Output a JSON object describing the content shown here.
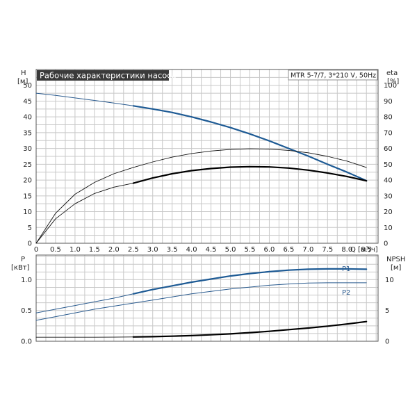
{
  "chart_data": [
    {
      "type": "line",
      "title": "Рабочие характеристики насоса",
      "model": "MTR 5-7/7, 3*210 V, 50Hz",
      "ylabel": "H",
      "yunit": "[м]",
      "y2label": "eta",
      "y2unit": "[%]",
      "xlabel": "Q [м³/ч]",
      "xlim": [
        0,
        8.8
      ],
      "ylim": [
        0,
        55
      ],
      "y2lim": [
        0,
        110
      ],
      "grid": true,
      "xticks": [
        "0",
        "0.5",
        "1.0",
        "1.5",
        "2.0",
        "2.5",
        "3.0",
        "3.5",
        "4.0",
        "4.5",
        "5.0",
        "5.5",
        "6.0",
        "6.5",
        "7.0",
        "7.5",
        "8.0",
        "8.5"
      ],
      "yticks": [
        "0",
        "5",
        "10",
        "15",
        "20",
        "25",
        "30",
        "35",
        "40",
        "45",
        "50"
      ],
      "y2ticks": [
        "0",
        "10",
        "20",
        "30",
        "40",
        "50",
        "60",
        "70",
        "80",
        "90",
        "100"
      ],
      "series": [
        {
          "id": "head-thin",
          "axis": "left",
          "color": "#2a5b8f",
          "width": 1,
          "x": [
            0,
            0.5,
            1.0,
            1.5,
            2.0,
            2.5
          ],
          "y": [
            47.5,
            46.8,
            46.0,
            45.2,
            44.4,
            43.5
          ]
        },
        {
          "id": "head-thick",
          "axis": "left",
          "color": "#1d5a94",
          "width": 2.2,
          "x": [
            2.5,
            3.0,
            3.5,
            4.0,
            4.5,
            5.0,
            5.5,
            6.0,
            6.5,
            7.0,
            7.5,
            8.0,
            8.5
          ],
          "y": [
            43.5,
            42.5,
            41.4,
            40.0,
            38.4,
            36.6,
            34.6,
            32.4,
            30.0,
            27.6,
            25.0,
            22.5,
            19.8
          ]
        },
        {
          "id": "eta-thin-upper",
          "axis": "right",
          "color": "#111111",
          "width": 0.9,
          "x": [
            0,
            0.5,
            1.0,
            1.5,
            2.0,
            2.5,
            3.0,
            3.5,
            4.0,
            4.5,
            5.0,
            5.5,
            6.0,
            6.5,
            7.0,
            7.5,
            8.0,
            8.5
          ],
          "y": [
            0,
            19,
            31,
            38.5,
            44,
            48,
            51.5,
            54.5,
            56.8,
            58.4,
            59.4,
            59.8,
            59.6,
            58.8,
            57.3,
            55.0,
            52.0,
            48.0
          ]
        },
        {
          "id": "eta-thin-lower",
          "axis": "right",
          "color": "#111111",
          "width": 0.9,
          "x": [
            0,
            0.5,
            1.0,
            1.5,
            2.0,
            2.5
          ],
          "y": [
            0,
            15.5,
            25,
            31.5,
            35.5,
            38
          ]
        },
        {
          "id": "eta-thick",
          "axis": "right",
          "color": "#000000",
          "width": 2.2,
          "x": [
            2.5,
            3.0,
            3.5,
            4.0,
            4.5,
            5.0,
            5.5,
            6.0,
            6.5,
            7.0,
            7.5,
            8.0,
            8.5
          ],
          "y": [
            38,
            41.3,
            44,
            46,
            47.3,
            48.2,
            48.5,
            48.3,
            47.6,
            46.3,
            44.5,
            42.3,
            39.5
          ]
        }
      ]
    },
    {
      "type": "line",
      "ylabel": "P",
      "yunit": "[кВт]",
      "y2label": "NPSH",
      "y2unit": "[м]",
      "xlim": [
        0,
        8.8
      ],
      "ylim": [
        0,
        1.4
      ],
      "y2lim": [
        0,
        14
      ],
      "grid": true,
      "yticks": [
        "0.0",
        "0.5",
        "1.0"
      ],
      "y2ticks": [
        "0",
        "5",
        "10"
      ],
      "series": [
        {
          "id": "p1-thin",
          "name": "P1",
          "axis": "left",
          "color": "#2a5b8f",
          "width": 1,
          "x": [
            0,
            0.5,
            1.0,
            1.5,
            2.0,
            2.5
          ],
          "y": [
            0.46,
            0.52,
            0.58,
            0.64,
            0.7,
            0.77
          ]
        },
        {
          "id": "p1-thick",
          "name": "P1",
          "axis": "left",
          "color": "#1d5a94",
          "width": 2.2,
          "x": [
            2.5,
            3.0,
            3.5,
            4.0,
            4.5,
            5.0,
            5.5,
            6.0,
            6.5,
            7.0,
            7.5,
            8.0,
            8.5
          ],
          "y": [
            0.77,
            0.84,
            0.9,
            0.96,
            1.01,
            1.06,
            1.1,
            1.13,
            1.155,
            1.17,
            1.175,
            1.175,
            1.17
          ]
        },
        {
          "id": "p2",
          "name": "P2",
          "axis": "left",
          "color": "#2a5b8f",
          "width": 1,
          "x": [
            0,
            0.5,
            1.0,
            1.5,
            2.0,
            2.5,
            3.0,
            3.5,
            4.0,
            4.5,
            5.0,
            5.5,
            6.0,
            6.5,
            7.0,
            7.5,
            8.0,
            8.5
          ],
          "y": [
            0.34,
            0.4,
            0.46,
            0.52,
            0.57,
            0.62,
            0.67,
            0.72,
            0.77,
            0.81,
            0.85,
            0.88,
            0.91,
            0.93,
            0.945,
            0.95,
            0.95,
            0.95
          ]
        },
        {
          "id": "npsh-thin",
          "axis": "right",
          "color": "#111111",
          "width": 0.9,
          "x": [
            0,
            0.5,
            1.0,
            1.5,
            2.0,
            2.5
          ],
          "y": [
            0.65,
            0.65,
            0.65,
            0.66,
            0.67,
            0.7
          ]
        },
        {
          "id": "npsh-thick",
          "axis": "right",
          "color": "#000000",
          "width": 2.2,
          "x": [
            2.5,
            3.0,
            3.5,
            4.0,
            4.5,
            5.0,
            5.5,
            6.0,
            6.5,
            7.0,
            7.5,
            8.0,
            8.5
          ],
          "y": [
            0.7,
            0.75,
            0.82,
            0.92,
            1.05,
            1.2,
            1.4,
            1.62,
            1.88,
            2.15,
            2.45,
            2.8,
            3.2
          ]
        }
      ]
    }
  ]
}
